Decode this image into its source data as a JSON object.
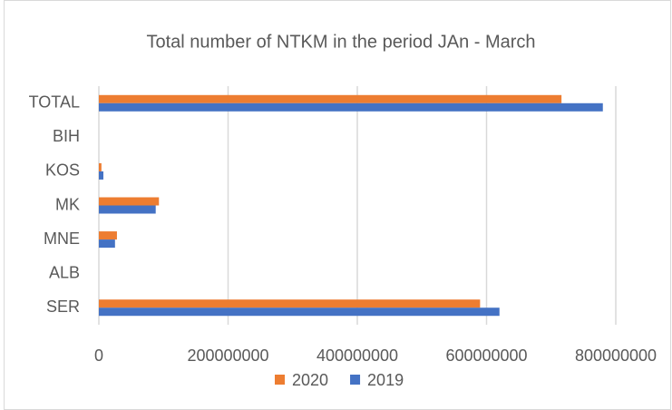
{
  "chart_data": {
    "type": "hbar",
    "title": "Total number of NTKM in the period JAn - March",
    "categories": [
      "TOTAL",
      "BIH",
      "KOS",
      "MK",
      "MNE",
      "ALB",
      "SER"
    ],
    "series": [
      {
        "name": "2020",
        "color": "#ed7d31",
        "values": [
          716000000,
          0,
          4000000,
          93000000,
          28000000,
          0,
          590000000
        ]
      },
      {
        "name": "2019",
        "color": "#4472c4",
        "values": [
          780000000,
          0,
          7000000,
          88000000,
          25000000,
          0,
          620000000
        ]
      }
    ],
    "xlim": [
      0,
      800000000
    ],
    "xticks": [
      0,
      200000000,
      400000000,
      600000000,
      800000000
    ],
    "grid": true,
    "legend": "bottom"
  }
}
